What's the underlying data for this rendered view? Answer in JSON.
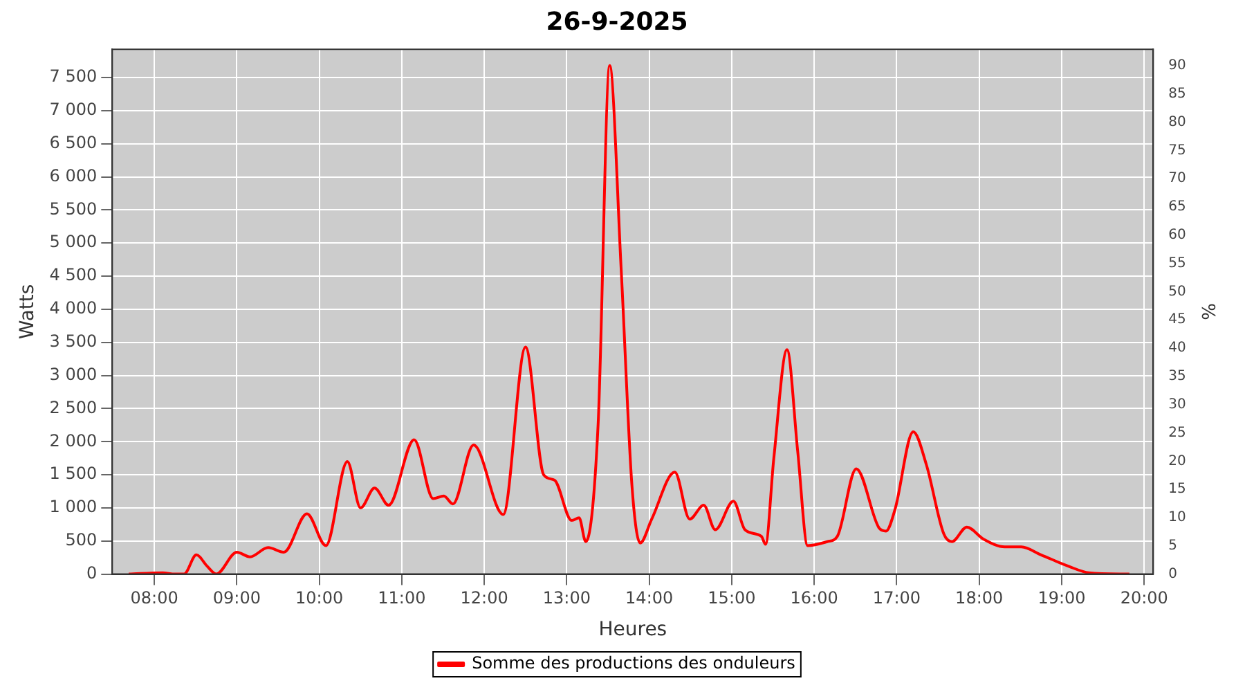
{
  "chart_data": {
    "type": "line",
    "title": "26-9-2025",
    "xlabel": "Heures",
    "ylabel": "Watts",
    "y2label": "%",
    "xlim": [
      7.49,
      20.11
    ],
    "xticks": [
      {
        "value": 8,
        "label": "08:00"
      },
      {
        "value": 9,
        "label": "09:00"
      },
      {
        "value": 10,
        "label": "10:00"
      },
      {
        "value": 11,
        "label": "11:00"
      },
      {
        "value": 12,
        "label": "12:00"
      },
      {
        "value": 13,
        "label": "13:00"
      },
      {
        "value": 14,
        "label": "14:00"
      },
      {
        "value": 15,
        "label": "15:00"
      },
      {
        "value": 16,
        "label": "16:00"
      },
      {
        "value": 17,
        "label": "17:00"
      },
      {
        "value": 18,
        "label": "18:00"
      },
      {
        "value": 19,
        "label": "19:00"
      },
      {
        "value": 20,
        "label": "20:00"
      }
    ],
    "ylim": [
      0,
      7927
    ],
    "yticks": [
      0,
      500,
      {
        "value": 1000,
        "label": "1 000"
      },
      {
        "value": 1500,
        "label": "1 500"
      },
      {
        "value": 2000,
        "label": "2 000"
      },
      {
        "value": 2500,
        "label": "2 500"
      },
      {
        "value": 3000,
        "label": "3 000"
      },
      {
        "value": 3500,
        "label": "3 500"
      },
      {
        "value": 4000,
        "label": "4 000"
      },
      {
        "value": 4500,
        "label": "4 500"
      },
      {
        "value": 5000,
        "label": "5 000"
      },
      {
        "value": 5500,
        "label": "5 500"
      },
      {
        "value": 6000,
        "label": "6 000"
      },
      {
        "value": 6500,
        "label": "6 500"
      },
      {
        "value": 7000,
        "label": "7 000"
      },
      {
        "value": 7500,
        "label": "7 500"
      }
    ],
    "y2lim": [
      0,
      92.9
    ],
    "y2ticks": [
      0,
      5,
      10,
      15,
      20,
      25,
      30,
      35,
      40,
      45,
      50,
      55,
      60,
      65,
      70,
      75,
      80,
      85,
      90
    ],
    "grid": true,
    "legend": "bottom",
    "marker": "none",
    "line_style": "solid",
    "series": [
      {
        "name": "Somme des productions des onduleurs",
        "color": "#ff0000",
        "x": [
          7.69,
          8.1,
          8.25,
          8.36,
          8.51,
          8.64,
          8.75,
          9.0,
          9.16,
          9.38,
          9.57,
          9.85,
          10.08,
          10.34,
          10.5,
          10.67,
          10.84,
          11.15,
          11.38,
          11.51,
          11.62,
          11.87,
          12.23,
          12.5,
          12.72,
          12.85,
          13.06,
          13.15,
          13.23,
          13.38,
          13.52,
          13.66,
          13.79,
          13.89,
          14.03,
          14.31,
          14.49,
          14.66,
          14.8,
          15.02,
          15.16,
          15.36,
          15.41,
          15.51,
          15.67,
          15.8,
          15.92,
          16.16,
          16.28,
          16.51,
          16.79,
          16.87,
          16.98,
          17.2,
          17.36,
          17.57,
          17.67,
          17.85,
          18.05,
          18.31,
          18.51,
          18.75,
          19.08,
          19.33,
          19.82
        ],
        "values": [
          0,
          20,
          0,
          0,
          290,
          120,
          0,
          330,
          260,
          400,
          330,
          910,
          430,
          1700,
          1000,
          1300,
          1040,
          2030,
          1140,
          1180,
          1060,
          1950,
          900,
          3430,
          1500,
          1420,
          810,
          850,
          490,
          2260,
          7680,
          4590,
          1340,
          470,
          830,
          1540,
          830,
          1040,
          670,
          1100,
          670,
          570,
          450,
          1750,
          3390,
          1850,
          430,
          490,
          570,
          1590,
          690,
          650,
          980,
          2150,
          1650,
          610,
          490,
          710,
          530,
          410,
          410,
          290,
          120,
          20,
          0
        ]
      }
    ]
  }
}
